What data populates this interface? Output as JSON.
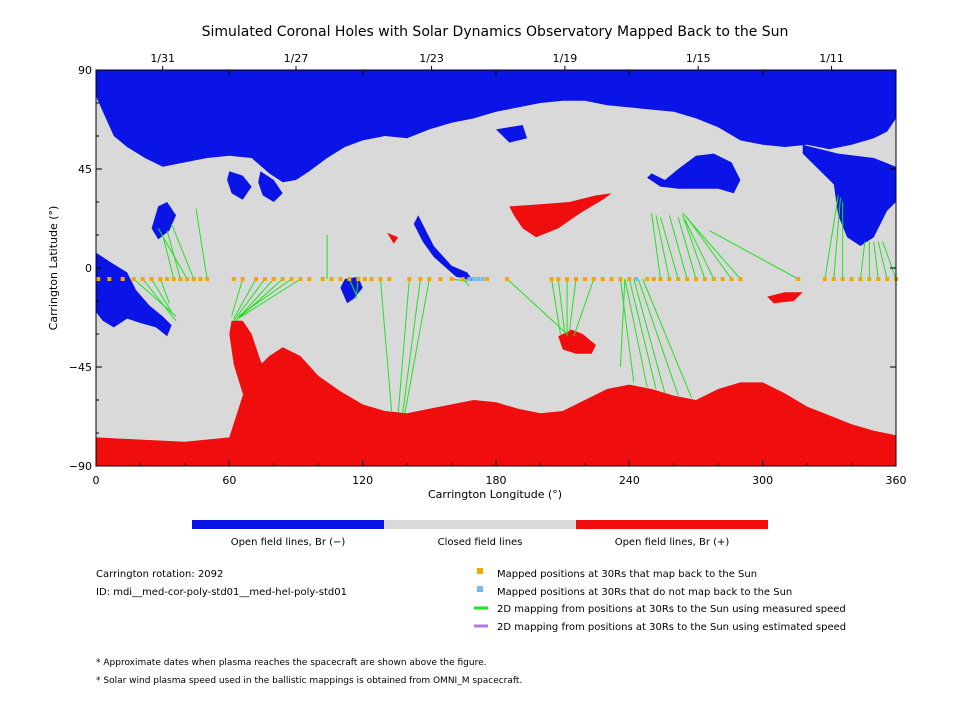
{
  "chart_data": {
    "type": "map",
    "title": "Simulated Coronal Holes with Solar Dynamics Observatory Mapped Back to the Sun",
    "xlabel": "Carrington Longitude (°)",
    "ylabel": "Carrington Latitude (°)",
    "xlim": [
      0,
      360
    ],
    "ylim": [
      -90,
      90
    ],
    "x_ticks": [
      "0",
      "60",
      "120",
      "180",
      "240",
      "300",
      "360"
    ],
    "y_ticks": [
      "90",
      "45",
      "0",
      "−45",
      "−90"
    ],
    "top_dates": [
      {
        "label": "1/31",
        "lon": 30
      },
      {
        "label": "1/27",
        "lon": 90
      },
      {
        "label": "1/23",
        "lon": 151
      },
      {
        "label": "1/19",
        "lon": 211
      },
      {
        "label": "1/15",
        "lon": 271
      },
      {
        "label": "1/11",
        "lon": 331
      }
    ],
    "colors": {
      "open_negative": "#0a14e6",
      "closed": "#d9d9d9",
      "open_positive": "#f00d0d",
      "mapped": "#f0a800",
      "not_mapped": "#7ab8f0",
      "measured_speed": "#22e022",
      "estimated_speed": "#b07ae0"
    },
    "north_boundary": [
      [
        0,
        78
      ],
      [
        8,
        60
      ],
      [
        14,
        55
      ],
      [
        22,
        50
      ],
      [
        30,
        46
      ],
      [
        40,
        48
      ],
      [
        50,
        50
      ],
      [
        60,
        51
      ],
      [
        70,
        50
      ],
      [
        78,
        43
      ],
      [
        84,
        39
      ],
      [
        90,
        40
      ],
      [
        96,
        44
      ],
      [
        104,
        50
      ],
      [
        112,
        55
      ],
      [
        120,
        58
      ],
      [
        130,
        60
      ],
      [
        140,
        59
      ],
      [
        150,
        63
      ],
      [
        160,
        66
      ],
      [
        170,
        68
      ],
      [
        180,
        71
      ],
      [
        190,
        73
      ],
      [
        200,
        75
      ],
      [
        210,
        76
      ],
      [
        220,
        76
      ],
      [
        230,
        74
      ],
      [
        240,
        73
      ],
      [
        250,
        72
      ],
      [
        260,
        71
      ],
      [
        270,
        68
      ],
      [
        280,
        64
      ],
      [
        290,
        58
      ],
      [
        300,
        56
      ],
      [
        310,
        55
      ],
      [
        320,
        56
      ],
      [
        330,
        54
      ],
      [
        340,
        56
      ],
      [
        350,
        59
      ],
      [
        356,
        62
      ],
      [
        360,
        68
      ]
    ],
    "south_boundary": [
      [
        0,
        -77
      ],
      [
        20,
        -78
      ],
      [
        40,
        -79
      ],
      [
        60,
        -77
      ],
      [
        66,
        -58
      ],
      [
        72,
        -46
      ],
      [
        78,
        -40
      ],
      [
        84,
        -36
      ],
      [
        92,
        -40
      ],
      [
        100,
        -49
      ],
      [
        110,
        -56
      ],
      [
        120,
        -62
      ],
      [
        130,
        -65
      ],
      [
        140,
        -66
      ],
      [
        150,
        -64
      ],
      [
        160,
        -62
      ],
      [
        170,
        -60
      ],
      [
        180,
        -61
      ],
      [
        190,
        -64
      ],
      [
        200,
        -66
      ],
      [
        210,
        -65
      ],
      [
        220,
        -60
      ],
      [
        230,
        -55
      ],
      [
        240,
        -53
      ],
      [
        250,
        -55
      ],
      [
        260,
        -58
      ],
      [
        270,
        -60
      ],
      [
        280,
        -55
      ],
      [
        290,
        -52
      ],
      [
        300,
        -52
      ],
      [
        310,
        -57
      ],
      [
        320,
        -63
      ],
      [
        330,
        -67
      ],
      [
        340,
        -71
      ],
      [
        350,
        -74
      ],
      [
        360,
        -76
      ]
    ],
    "neg_holes": [
      [
        [
          0,
          7
        ],
        [
          6,
          3
        ],
        [
          14,
          -2
        ],
        [
          18,
          -10
        ],
        [
          24,
          -17
        ],
        [
          30,
          -22
        ],
        [
          34,
          -26
        ],
        [
          32,
          -31
        ],
        [
          27,
          -27
        ],
        [
          20,
          -25
        ],
        [
          14,
          -23
        ],
        [
          8,
          -27
        ],
        [
          3,
          -24
        ],
        [
          0,
          -20
        ]
      ],
      [
        [
          28,
          28
        ],
        [
          32,
          30
        ],
        [
          36,
          24
        ],
        [
          33,
          17
        ],
        [
          28,
          13
        ],
        [
          25,
          18
        ]
      ],
      [
        [
          112,
          -5
        ],
        [
          118,
          -4
        ],
        [
          120,
          -9
        ],
        [
          116,
          -14
        ],
        [
          113,
          -16
        ],
        [
          110,
          -9
        ]
      ],
      [
        [
          145,
          24
        ],
        [
          152,
          10
        ],
        [
          160,
          1
        ],
        [
          167,
          -2
        ],
        [
          170,
          -6
        ],
        [
          162,
          -4
        ],
        [
          152,
          5
        ],
        [
          147,
          12
        ],
        [
          143,
          20
        ]
      ],
      [
        [
          180,
          63
        ],
        [
          186,
          57
        ],
        [
          194,
          59
        ],
        [
          192,
          65
        ]
      ],
      [
        [
          248,
          41
        ],
        [
          254,
          37
        ],
        [
          262,
          36
        ],
        [
          270,
          36
        ],
        [
          280,
          36
        ],
        [
          287,
          34
        ],
        [
          290,
          40
        ],
        [
          286,
          48
        ],
        [
          278,
          52
        ],
        [
          270,
          51
        ],
        [
          262,
          45
        ],
        [
          256,
          40
        ],
        [
          250,
          43
        ]
      ],
      [
        [
          318,
          56
        ],
        [
          334,
          52
        ],
        [
          350,
          50
        ],
        [
          360,
          46
        ],
        [
          360,
          30
        ],
        [
          356,
          26
        ],
        [
          350,
          14
        ],
        [
          344,
          10
        ],
        [
          338,
          14
        ],
        [
          334,
          24
        ],
        [
          332,
          38
        ],
        [
          324,
          46
        ],
        [
          318,
          52
        ]
      ],
      [
        [
          60,
          44
        ],
        [
          66,
          42
        ],
        [
          70,
          37
        ],
        [
          66,
          31
        ],
        [
          61,
          34
        ],
        [
          59,
          40
        ]
      ],
      [
        [
          74,
          44
        ],
        [
          80,
          40
        ],
        [
          84,
          34
        ],
        [
          80,
          30
        ],
        [
          75,
          33
        ],
        [
          73,
          39
        ]
      ]
    ],
    "pos_holes": [
      [
        [
          186,
          28
        ],
        [
          200,
          29
        ],
        [
          213,
          30
        ],
        [
          225,
          33
        ],
        [
          232,
          34
        ],
        [
          228,
          31
        ],
        [
          218,
          25
        ],
        [
          208,
          18
        ],
        [
          198,
          14
        ],
        [
          192,
          18
        ],
        [
          188,
          24
        ]
      ],
      [
        [
          61,
          -24
        ],
        [
          66,
          -24
        ],
        [
          70,
          -30
        ],
        [
          74,
          -42
        ],
        [
          78,
          -50
        ],
        [
          76,
          -62
        ],
        [
          70,
          -66
        ],
        [
          66,
          -57
        ],
        [
          62,
          -44
        ],
        [
          60,
          -30
        ]
      ],
      [
        [
          208,
          -31
        ],
        [
          214,
          -28
        ],
        [
          219,
          -30
        ],
        [
          225,
          -35
        ],
        [
          223,
          -39
        ],
        [
          216,
          -39
        ],
        [
          210,
          -37
        ]
      ],
      [
        [
          302,
          -13
        ],
        [
          310,
          -11
        ],
        [
          318,
          -11
        ],
        [
          314,
          -15
        ],
        [
          305,
          -16
        ]
      ],
      [
        [
          131,
          16
        ],
        [
          136,
          14
        ],
        [
          134,
          11
        ]
      ]
    ],
    "mapped_lons": [
      1,
      6,
      12,
      17,
      21,
      25,
      29,
      32,
      35,
      38,
      41,
      44,
      47,
      50,
      62,
      66,
      72,
      76,
      80,
      84,
      88,
      92,
      96,
      102,
      106,
      110,
      114,
      118,
      121,
      124,
      128,
      132,
      141,
      146,
      150,
      155,
      160,
      165,
      176,
      185,
      205,
      208,
      212,
      216,
      220,
      224,
      228,
      232,
      236,
      240,
      248,
      251,
      254,
      258,
      262,
      266,
      270,
      274,
      278,
      282,
      286,
      290,
      316,
      328,
      332,
      336,
      340,
      344,
      348,
      352,
      356,
      360
    ],
    "not_mapped_lons": [
      168,
      170,
      172,
      174,
      243
    ],
    "lines": [
      [
        [
          17,
          -5
        ],
        [
          36,
          -22
        ]
      ],
      [
        [
          21,
          -5
        ],
        [
          36,
          -24
        ]
      ],
      [
        [
          25,
          -5
        ],
        [
          34,
          -20
        ]
      ],
      [
        [
          29,
          -5
        ],
        [
          33,
          -16
        ]
      ],
      [
        [
          35,
          -5
        ],
        [
          30,
          15
        ]
      ],
      [
        [
          38,
          -5
        ],
        [
          32,
          17
        ]
      ],
      [
        [
          41,
          -5
        ],
        [
          28,
          18
        ]
      ],
      [
        [
          44,
          -5
        ],
        [
          34,
          20
        ]
      ],
      [
        [
          50,
          -5
        ],
        [
          45,
          27
        ]
      ],
      [
        [
          66,
          -5
        ],
        [
          61,
          -22
        ]
      ],
      [
        [
          72,
          -5
        ],
        [
          62,
          -23
        ]
      ],
      [
        [
          76,
          -5
        ],
        [
          62,
          -24
        ]
      ],
      [
        [
          80,
          -5
        ],
        [
          63,
          -24
        ]
      ],
      [
        [
          84,
          -5
        ],
        [
          64,
          -23
        ]
      ],
      [
        [
          88,
          -5
        ],
        [
          64,
          -22
        ]
      ],
      [
        [
          92,
          -5
        ],
        [
          64,
          -23
        ]
      ],
      [
        [
          104,
          -5
        ],
        [
          104,
          15
        ]
      ],
      [
        [
          114,
          -5
        ],
        [
          117,
          -12
        ]
      ],
      [
        [
          118,
          -5
        ],
        [
          117,
          -14
        ]
      ],
      [
        [
          128,
          -5
        ],
        [
          133,
          -65
        ]
      ],
      [
        [
          141,
          -5
        ],
        [
          136,
          -66
        ]
      ],
      [
        [
          146,
          -5
        ],
        [
          138,
          -66
        ]
      ],
      [
        [
          150,
          -5
        ],
        [
          139,
          -66
        ]
      ],
      [
        [
          160,
          -5
        ],
        [
          167,
          -6
        ]
      ],
      [
        [
          165,
          -5
        ],
        [
          168,
          -8
        ]
      ],
      [
        [
          185,
          -5
        ],
        [
          212,
          -30
        ]
      ],
      [
        [
          205,
          -5
        ],
        [
          209,
          -30
        ]
      ],
      [
        [
          208,
          -5
        ],
        [
          211,
          -30
        ]
      ],
      [
        [
          212,
          -5
        ],
        [
          212,
          -31
        ]
      ],
      [
        [
          216,
          -5
        ],
        [
          213,
          -29
        ]
      ],
      [
        [
          224,
          -5
        ],
        [
          215,
          -31
        ]
      ],
      [
        [
          236,
          -5
        ],
        [
          242,
          -52
        ]
      ],
      [
        [
          238,
          -5
        ],
        [
          248,
          -54
        ]
      ],
      [
        [
          240,
          -5
        ],
        [
          252,
          -55
        ]
      ],
      [
        [
          242,
          -5
        ],
        [
          256,
          -57
        ]
      ],
      [
        [
          244,
          -5
        ],
        [
          262,
          -58
        ]
      ],
      [
        [
          246,
          -5
        ],
        [
          268,
          -59
        ]
      ],
      [
        [
          238,
          -5
        ],
        [
          236,
          -45
        ]
      ],
      [
        [
          254,
          -5
        ],
        [
          250,
          25
        ]
      ],
      [
        [
          258,
          -5
        ],
        [
          252,
          24
        ]
      ],
      [
        [
          262,
          -5
        ],
        [
          254,
          23
        ]
      ],
      [
        [
          266,
          -5
        ],
        [
          258,
          24
        ]
      ],
      [
        [
          270,
          -5
        ],
        [
          262,
          23
        ]
      ],
      [
        [
          274,
          -5
        ],
        [
          264,
          24
        ]
      ],
      [
        [
          278,
          -5
        ],
        [
          265,
          22
        ]
      ],
      [
        [
          286,
          -5
        ],
        [
          266,
          23
        ]
      ],
      [
        [
          290,
          -5
        ],
        [
          264,
          25
        ]
      ],
      [
        [
          316,
          -5
        ],
        [
          276,
          17
        ]
      ],
      [
        [
          328,
          -5
        ],
        [
          334,
          33
        ]
      ],
      [
        [
          332,
          -5
        ],
        [
          335,
          32
        ]
      ],
      [
        [
          336,
          -5
        ],
        [
          336,
          30
        ]
      ],
      [
        [
          344,
          -5
        ],
        [
          346,
          12
        ]
      ],
      [
        [
          348,
          -5
        ],
        [
          348,
          12
        ]
      ],
      [
        [
          352,
          -5
        ],
        [
          350,
          12
        ]
      ],
      [
        [
          356,
          -5
        ],
        [
          352,
          12
        ]
      ],
      [
        [
          360,
          -5
        ],
        [
          354,
          12
        ]
      ]
    ],
    "colorbar_labels": [
      "Open field lines, Br (−)",
      "Closed field lines",
      "Open field lines, Br (+)"
    ]
  },
  "info": {
    "rotation": "Carrington rotation: 2092",
    "id": "ID: mdi__med-cor-poly-std01__med-hel-poly-std01"
  },
  "legend": [
    {
      "marker": "square",
      "color": "#f0a800",
      "label": "Mapped positions at 30Rs that map back to the Sun"
    },
    {
      "marker": "square",
      "color": "#7ab8f0",
      "label": "Mapped positions at 30Rs that do not map back to the Sun"
    },
    {
      "marker": "line",
      "color": "#22e022",
      "label": "2D mapping from positions at 30Rs to the Sun using measured speed"
    },
    {
      "marker": "line",
      "color": "#b07ae0",
      "label": "2D mapping from positions at 30Rs to the Sun using estimated speed"
    }
  ],
  "notes": [
    "* Approximate dates when plasma reaches the spacecraft are shown above the figure.",
    "* Solar wind plasma speed used in the ballistic mappings is obtained from OMNI_M spacecraft."
  ]
}
